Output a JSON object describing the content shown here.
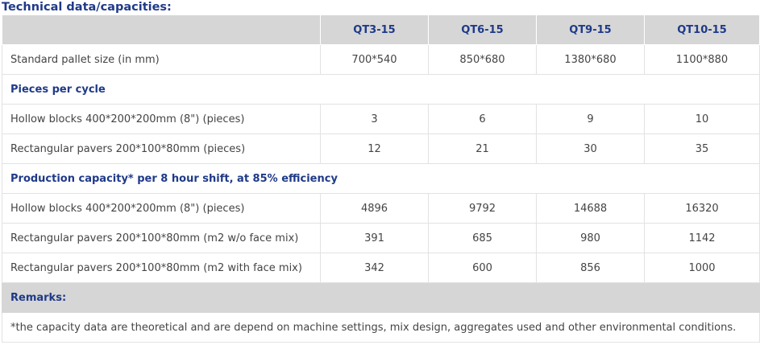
{
  "title": "Technical data/capacities:",
  "columns": [
    "QT3-15",
    "QT6-15",
    "QT9-15",
    "QT10-15"
  ],
  "pallet": {
    "label": "Standard pallet size (in mm)",
    "values": [
      "700*540",
      "850*680",
      "1380*680",
      "1100*880"
    ]
  },
  "pieces_per_cycle": {
    "heading": "Pieces per cycle",
    "rows": [
      {
        "label": "Hollow blocks 400*200*200mm (8\") (pieces)",
        "values": [
          "3",
          "6",
          "9",
          "10"
        ]
      },
      {
        "label": "Rectangular pavers 200*100*80mm (pieces)",
        "values": [
          "12",
          "21",
          "30",
          "35"
        ]
      }
    ]
  },
  "production": {
    "heading": "Production capacity* per 8 hour shift, at 85% efficiency",
    "rows": [
      {
        "label": "Hollow blocks 400*200*200mm (8\") (pieces)",
        "values": [
          "4896",
          "9792",
          "14688",
          "16320"
        ]
      },
      {
        "label": "Rectangular pavers 200*100*80mm (m2 w/o face mix)",
        "values": [
          "391",
          "685",
          "980",
          "1142"
        ]
      },
      {
        "label": "Rectangular pavers 200*100*80mm (m2 with face mix)",
        "values": [
          "342",
          "600",
          "856",
          "1000"
        ]
      }
    ]
  },
  "remarks": {
    "heading": "Remarks:",
    "text": "*the capacity data are theoretical and are depend on machine settings, mix design, aggregates used and other environmental conditions."
  },
  "colors": {
    "heading_text": "#1f3a88",
    "header_bg": "#d6d6d6",
    "body_text": "#444444",
    "border": "#e2e2e2"
  }
}
